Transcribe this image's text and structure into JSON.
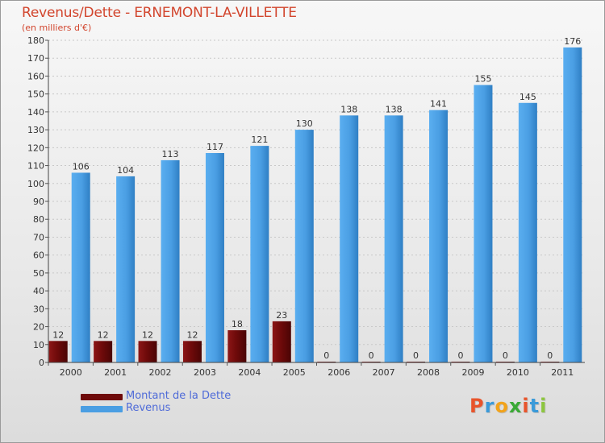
{
  "title": "Revenus/Dette - ERNEMONT-LA-VILLETTE",
  "subtitle": "(en milliers d'€)",
  "logo_text": "Proxiti",
  "logo_colors": [
    "#e8542b",
    "#3a9ad9",
    "#f2a31b",
    "#3aa935",
    "#e8542b",
    "#3a9ad9",
    "#8dc63f"
  ],
  "chart_data": {
    "type": "bar",
    "categories": [
      "2000",
      "2001",
      "2002",
      "2003",
      "2004",
      "2005",
      "2006",
      "2007",
      "2008",
      "2009",
      "2010",
      "2011"
    ],
    "series": [
      {
        "name": "Montant de la Dette",
        "color": "#6e0a0a",
        "values": [
          12,
          12,
          12,
          12,
          18,
          23,
          0,
          0,
          0,
          0,
          0,
          0
        ]
      },
      {
        "name": "Revenus",
        "color": "#4a9ee3",
        "values": [
          106,
          104,
          113,
          117,
          121,
          130,
          138,
          138,
          141,
          155,
          145,
          176
        ]
      }
    ],
    "ylim": [
      0,
      180
    ],
    "yticks": [
      0,
      10,
      20,
      30,
      40,
      50,
      60,
      70,
      80,
      90,
      100,
      110,
      120,
      130,
      140,
      150,
      160,
      170,
      180
    ],
    "grid": true,
    "legend": "bottom-left"
  }
}
